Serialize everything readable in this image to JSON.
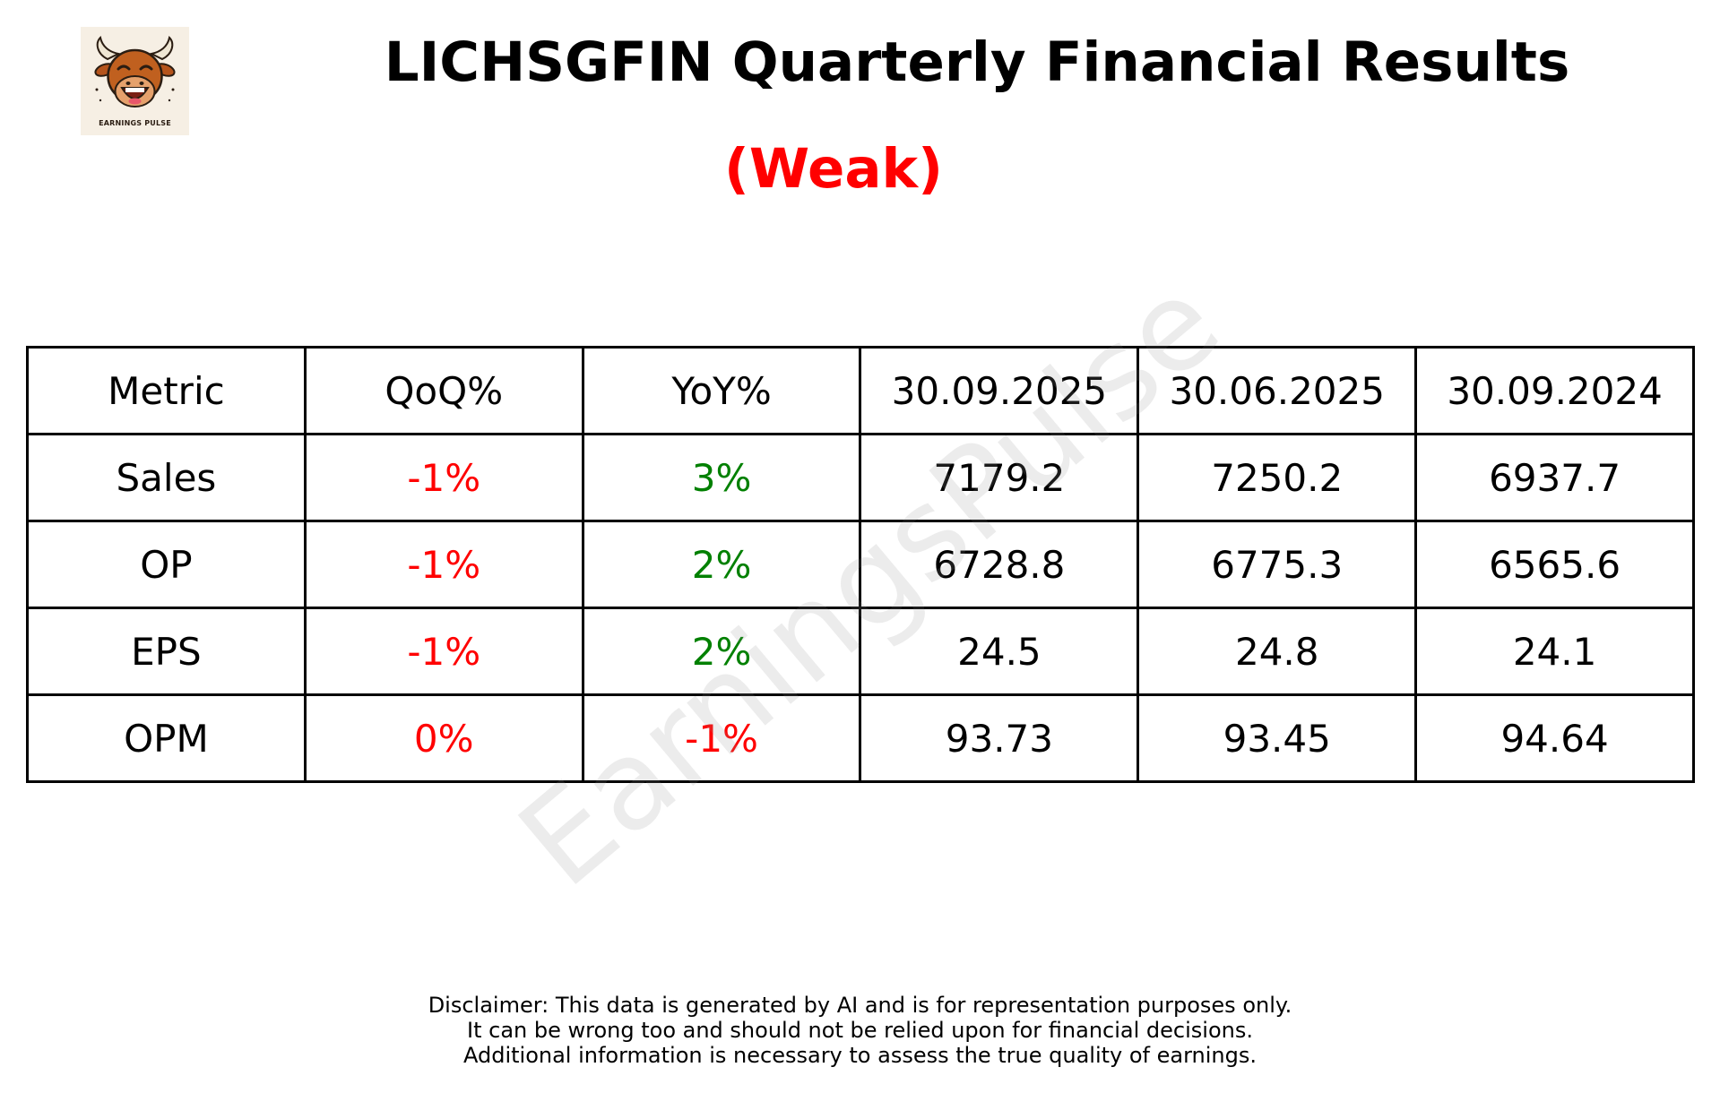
{
  "logo": {
    "icon": "bull-mascot-icon",
    "text": "EARNINGS PULSE"
  },
  "title": "LICHSGFIN Quarterly Financial Results",
  "verdict": {
    "text": "(Weak)",
    "color": "#ff0000"
  },
  "watermark": "EarningsPulse",
  "colors": {
    "negative": "#ff0000",
    "positive": "#008000",
    "neutral": "#000000"
  },
  "table": {
    "headers": [
      "Metric",
      "QoQ%",
      "YoY%",
      "30.09.2025",
      "30.06.2025",
      "30.09.2024"
    ],
    "rows": [
      {
        "metric": "Sales",
        "qoq": "-1%",
        "yoy": "3%",
        "q1": "7179.2",
        "q2": "7250.2",
        "q3": "6937.7"
      },
      {
        "metric": "OP",
        "qoq": "-1%",
        "yoy": "2%",
        "q1": "6728.8",
        "q2": "6775.3",
        "q3": "6565.6"
      },
      {
        "metric": "EPS",
        "qoq": "-1%",
        "yoy": "2%",
        "q1": "24.5",
        "q2": "24.8",
        "q3": "24.1"
      },
      {
        "metric": "OPM",
        "qoq": "0%",
        "yoy": "-1%",
        "q1": "93.73",
        "q2": "93.45",
        "q3": "94.64"
      }
    ]
  },
  "disclaimer": [
    "Disclaimer: This data is generated by AI and is for representation purposes only.",
    "It can be wrong too and should not be relied upon for financial decisions.",
    "Additional information is necessary to assess the true quality of earnings."
  ]
}
